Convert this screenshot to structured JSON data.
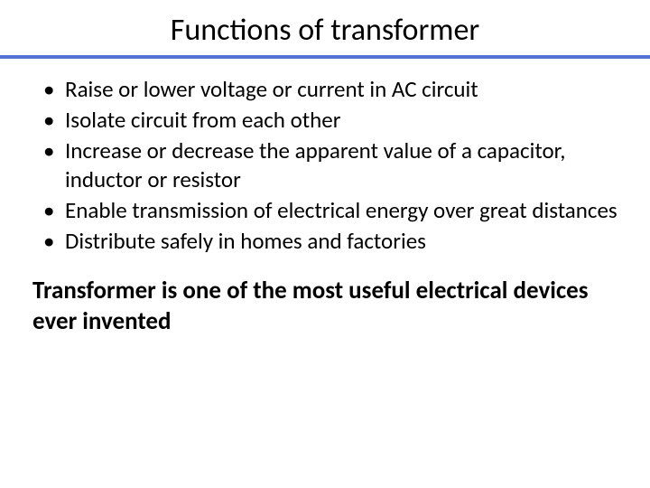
{
  "title": "Functions of transformer",
  "title_fontsize": 34,
  "title_color": "#000000",
  "rule_color": "#5472d4",
  "rule_height": 4,
  "background_color": "#ffffff",
  "bullets": {
    "fontsize": 25,
    "color": "#000000",
    "marker": "•",
    "items": [
      "Raise or lower voltage or current in AC circuit",
      "Isolate circuit from each other",
      "Increase or decrease the apparent value of a capacitor,  inductor or resistor",
      "Enable transmission of electrical energy over great distances",
      "Distribute safely in homes and factories"
    ]
  },
  "conclusion": {
    "text": "Transformer is one of the most useful electrical devices ever invented",
    "fontsize": 27,
    "fontweight": 700,
    "color": "#000000"
  }
}
